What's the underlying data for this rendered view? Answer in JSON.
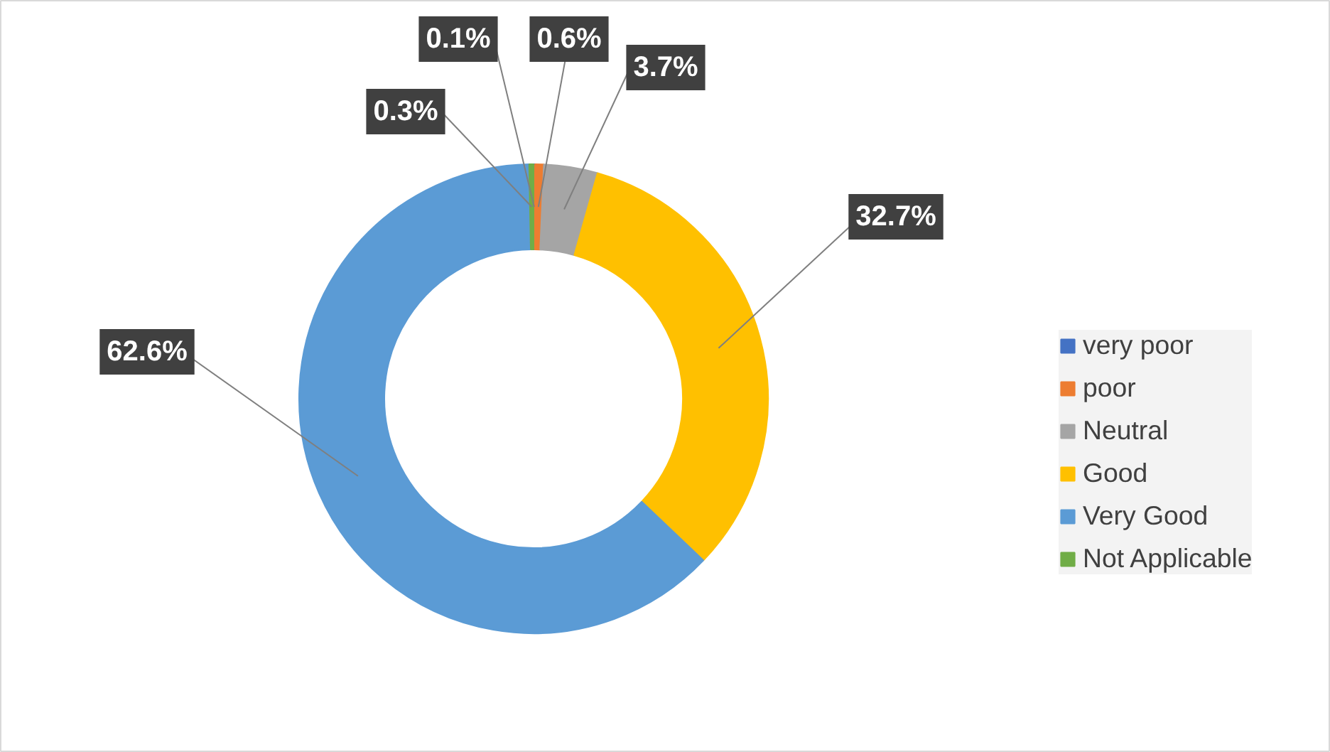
{
  "chart_data": {
    "type": "donut",
    "categories": [
      "very poor",
      "poor",
      "Neutral",
      "Good",
      "Very Good",
      "Not Applicable"
    ],
    "values": [
      0.1,
      0.6,
      3.7,
      32.7,
      62.6,
      0.3
    ],
    "colors": [
      "#4472c4",
      "#ed7d31",
      "#a5a5a5",
      "#ffc000",
      "#5b9bd5",
      "#70ad47"
    ],
    "value_labels": [
      "0.1%",
      "0.6%",
      "3.7%",
      "32.7%",
      "62.6%",
      "0.3%"
    ],
    "legend": "right"
  }
}
